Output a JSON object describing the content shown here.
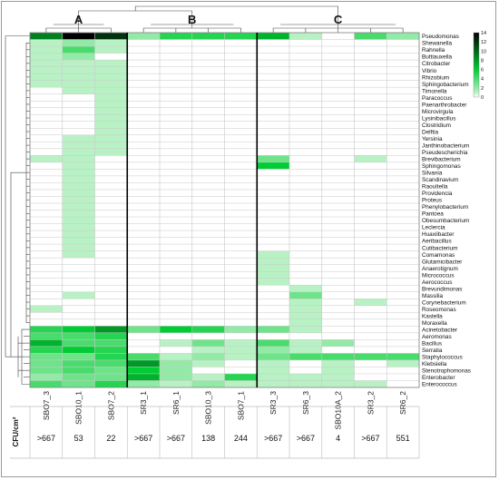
{
  "chart_data": {
    "type": "heatmap",
    "title": "",
    "groups": [
      {
        "label": "A",
        "samples": [
          "SBO7_3",
          "SBO10_1",
          "SBO7_2"
        ]
      },
      {
        "label": "B",
        "samples": [
          "SR3_1",
          "SR6_1",
          "SBO10_3",
          "SBO7_1"
        ]
      },
      {
        "label": "C",
        "samples": [
          "SR3_3",
          "SR6_3",
          "SBO10A_2",
          "SR3_2",
          "SR6_2"
        ]
      }
    ],
    "samples": [
      "SBO7_3",
      "SBO10_1",
      "SBO7_2",
      "SR3_1",
      "SR6_1",
      "SBO10_3",
      "SBO7_1",
      "SR3_3",
      "SR6_3",
      "SBO10A_2",
      "SR3_2",
      "SR6_2"
    ],
    "genera": [
      "Pseudomonas",
      "Shewanella",
      "Rahnella",
      "Buttiauxella",
      "Citrobacter",
      "Vibrio",
      "Rhizobium",
      "Sphingobacterium",
      "Timonella",
      "Paracoccus",
      "Paenarthrobacter",
      "Microvirgula",
      "Lysinibacillus",
      "Clostridium",
      "Delftia",
      "Yersinia",
      "Janthinobacterium",
      "Pseudescherichia",
      "Brevibacterium",
      "Sphingomonas",
      "Silvania",
      "Scandinavium",
      "Raoultella",
      "Providencia",
      "Proteus",
      "Phenylobacterium",
      "Pantoea",
      "Obesumbacterium",
      "Leclercia",
      "Huaxiibacter",
      "Aeribacillus",
      "Cutibacterium",
      "Comamonas",
      "Glutamicibacter",
      "Anaerotignum",
      "Micrococcus",
      "Aerococcus",
      "Brevundimonas",
      "Massilia",
      "Corynebacterium",
      "Roseomonas",
      "Kastella",
      "Moraxella",
      "Acinetobacter",
      "Aeromonas",
      "Bacillus",
      "Serratia",
      "Staphylococcus",
      "Klebsiella",
      "Stenotrophomonas",
      "Enterobacter",
      "Enterococcus"
    ],
    "values": [
      [
        9,
        14,
        12,
        2,
        5,
        5,
        5,
        7,
        1,
        0,
        4,
        2
      ],
      [
        1,
        2,
        1,
        0,
        0,
        0,
        0,
        0,
        0,
        0,
        0,
        0
      ],
      [
        1,
        4,
        1,
        0,
        0,
        0,
        0,
        0,
        0,
        0,
        0,
        0
      ],
      [
        1,
        2,
        0,
        0,
        0,
        0,
        0,
        0,
        0,
        0,
        0,
        0
      ],
      [
        1,
        1,
        1,
        0,
        0,
        0,
        0,
        0,
        0,
        0,
        0,
        0
      ],
      [
        1,
        1,
        1,
        0,
        0,
        0,
        0,
        0,
        0,
        0,
        0,
        0
      ],
      [
        1,
        1,
        1,
        0,
        0,
        0,
        0,
        0,
        0,
        0,
        0,
        0
      ],
      [
        1,
        1,
        1,
        0,
        0,
        0,
        0,
        0,
        0,
        0,
        0,
        0
      ],
      [
        0,
        1,
        1,
        0,
        0,
        0,
        0,
        0,
        0,
        0,
        0,
        0
      ],
      [
        0,
        0,
        1,
        0,
        0,
        0,
        0,
        0,
        0,
        0,
        0,
        0
      ],
      [
        0,
        0,
        1,
        0,
        0,
        0,
        0,
        0,
        0,
        0,
        0,
        0
      ],
      [
        0,
        0,
        1,
        0,
        0,
        0,
        0,
        0,
        0,
        0,
        0,
        0
      ],
      [
        0,
        0,
        1,
        0,
        0,
        0,
        0,
        0,
        0,
        0,
        0,
        0
      ],
      [
        0,
        0,
        1,
        0,
        0,
        0,
        0,
        0,
        0,
        0,
        0,
        0
      ],
      [
        0,
        0,
        1,
        0,
        0,
        0,
        0,
        0,
        0,
        0,
        0,
        0
      ],
      [
        0,
        1,
        1,
        0,
        0,
        0,
        0,
        0,
        0,
        0,
        0,
        0
      ],
      [
        0,
        1,
        1,
        0,
        0,
        0,
        0,
        0,
        0,
        0,
        0,
        0
      ],
      [
        0,
        1,
        1,
        0,
        0,
        0,
        0,
        0,
        0,
        0,
        0,
        0
      ],
      [
        1,
        1,
        0,
        0,
        0,
        0,
        0,
        3,
        0,
        0,
        1,
        0
      ],
      [
        0,
        1,
        0,
        0,
        0,
        0,
        0,
        6,
        0,
        0,
        0,
        0
      ],
      [
        0,
        1,
        0,
        0,
        0,
        0,
        0,
        0,
        0,
        0,
        0,
        0
      ],
      [
        0,
        1,
        0,
        0,
        0,
        0,
        0,
        0,
        0,
        0,
        0,
        0
      ],
      [
        0,
        1,
        0,
        0,
        0,
        0,
        0,
        0,
        0,
        0,
        0,
        0
      ],
      [
        0,
        1,
        0,
        0,
        0,
        0,
        0,
        0,
        0,
        0,
        0,
        0
      ],
      [
        0,
        1,
        0,
        0,
        0,
        0,
        0,
        0,
        0,
        0,
        0,
        0
      ],
      [
        0,
        1,
        0,
        0,
        0,
        0,
        0,
        0,
        0,
        0,
        0,
        0
      ],
      [
        0,
        1,
        0,
        0,
        0,
        0,
        0,
        0,
        0,
        0,
        0,
        0
      ],
      [
        0,
        1,
        0,
        0,
        0,
        0,
        0,
        0,
        0,
        0,
        0,
        0
      ],
      [
        0,
        1,
        0,
        0,
        0,
        0,
        0,
        0,
        0,
        0,
        0,
        0
      ],
      [
        0,
        1,
        0,
        0,
        0,
        0,
        0,
        0,
        0,
        0,
        0,
        0
      ],
      [
        0,
        1,
        0,
        0,
        0,
        0,
        0,
        0,
        0,
        0,
        0,
        0
      ],
      [
        0,
        1,
        0,
        0,
        0,
        0,
        0,
        0,
        0,
        0,
        0,
        0
      ],
      [
        0,
        1,
        0,
        0,
        0,
        0,
        0,
        1,
        0,
        0,
        0,
        0
      ],
      [
        0,
        0,
        0,
        0,
        0,
        0,
        0,
        1,
        0,
        0,
        0,
        0
      ],
      [
        0,
        0,
        0,
        0,
        0,
        0,
        0,
        1,
        0,
        0,
        0,
        0
      ],
      [
        0,
        0,
        0,
        0,
        0,
        0,
        0,
        1,
        0,
        0,
        0,
        0
      ],
      [
        0,
        0,
        0,
        0,
        0,
        0,
        0,
        1,
        0,
        0,
        0,
        0
      ],
      [
        0,
        0,
        0,
        0,
        0,
        0,
        0,
        0,
        1,
        0,
        0,
        0
      ],
      [
        0,
        1,
        0,
        0,
        0,
        0,
        0,
        0,
        3,
        0,
        0,
        0
      ],
      [
        0,
        0,
        0,
        0,
        0,
        0,
        0,
        0,
        1,
        0,
        1,
        0
      ],
      [
        1,
        0,
        0,
        0,
        0,
        0,
        0,
        0,
        1,
        0,
        0,
        0
      ],
      [
        0,
        0,
        0,
        0,
        0,
        0,
        0,
        0,
        1,
        0,
        0,
        0
      ],
      [
        0,
        0,
        0,
        0,
        0,
        0,
        0,
        0,
        1,
        0,
        0,
        0
      ],
      [
        5,
        6,
        8,
        3,
        6,
        5,
        2,
        3,
        1,
        0,
        0,
        0
      ],
      [
        4,
        4,
        5,
        0,
        0,
        0,
        0,
        0,
        0,
        0,
        0,
        0
      ],
      [
        7,
        4,
        4,
        0,
        1,
        3,
        1,
        4,
        1,
        2,
        0,
        0
      ],
      [
        5,
        6,
        5,
        0,
        0,
        1,
        1,
        2,
        1,
        0,
        0,
        0
      ],
      [
        3,
        3,
        5,
        4,
        1,
        2,
        1,
        3,
        4,
        4,
        4,
        4
      ],
      [
        3,
        4,
        4,
        8,
        2,
        1,
        0,
        1,
        0,
        1,
        0,
        1
      ],
      [
        3,
        4,
        3,
        6,
        2,
        0,
        0,
        1,
        0,
        1,
        0,
        0
      ],
      [
        2,
        3,
        3,
        7,
        2,
        1,
        5,
        1,
        1,
        1,
        0,
        0
      ],
      [
        4,
        3,
        5,
        2,
        1,
        2,
        1,
        1,
        1,
        1,
        1,
        0
      ]
    ],
    "legend": {
      "ticks": [
        0,
        2,
        4,
        6,
        8,
        10,
        12,
        14
      ],
      "range": [
        0,
        14
      ],
      "placement": "right",
      "min_color": "#ffffff",
      "max_color": "#000000",
      "mid_color": "#00cc33"
    },
    "cfu_label": "CFU/cm²",
    "cfu_values": [
      ">667",
      "53",
      "22",
      ">667",
      ">667",
      "138",
      "244",
      ">667",
      ">667",
      "4",
      ">667",
      "551"
    ],
    "grid": true
  }
}
